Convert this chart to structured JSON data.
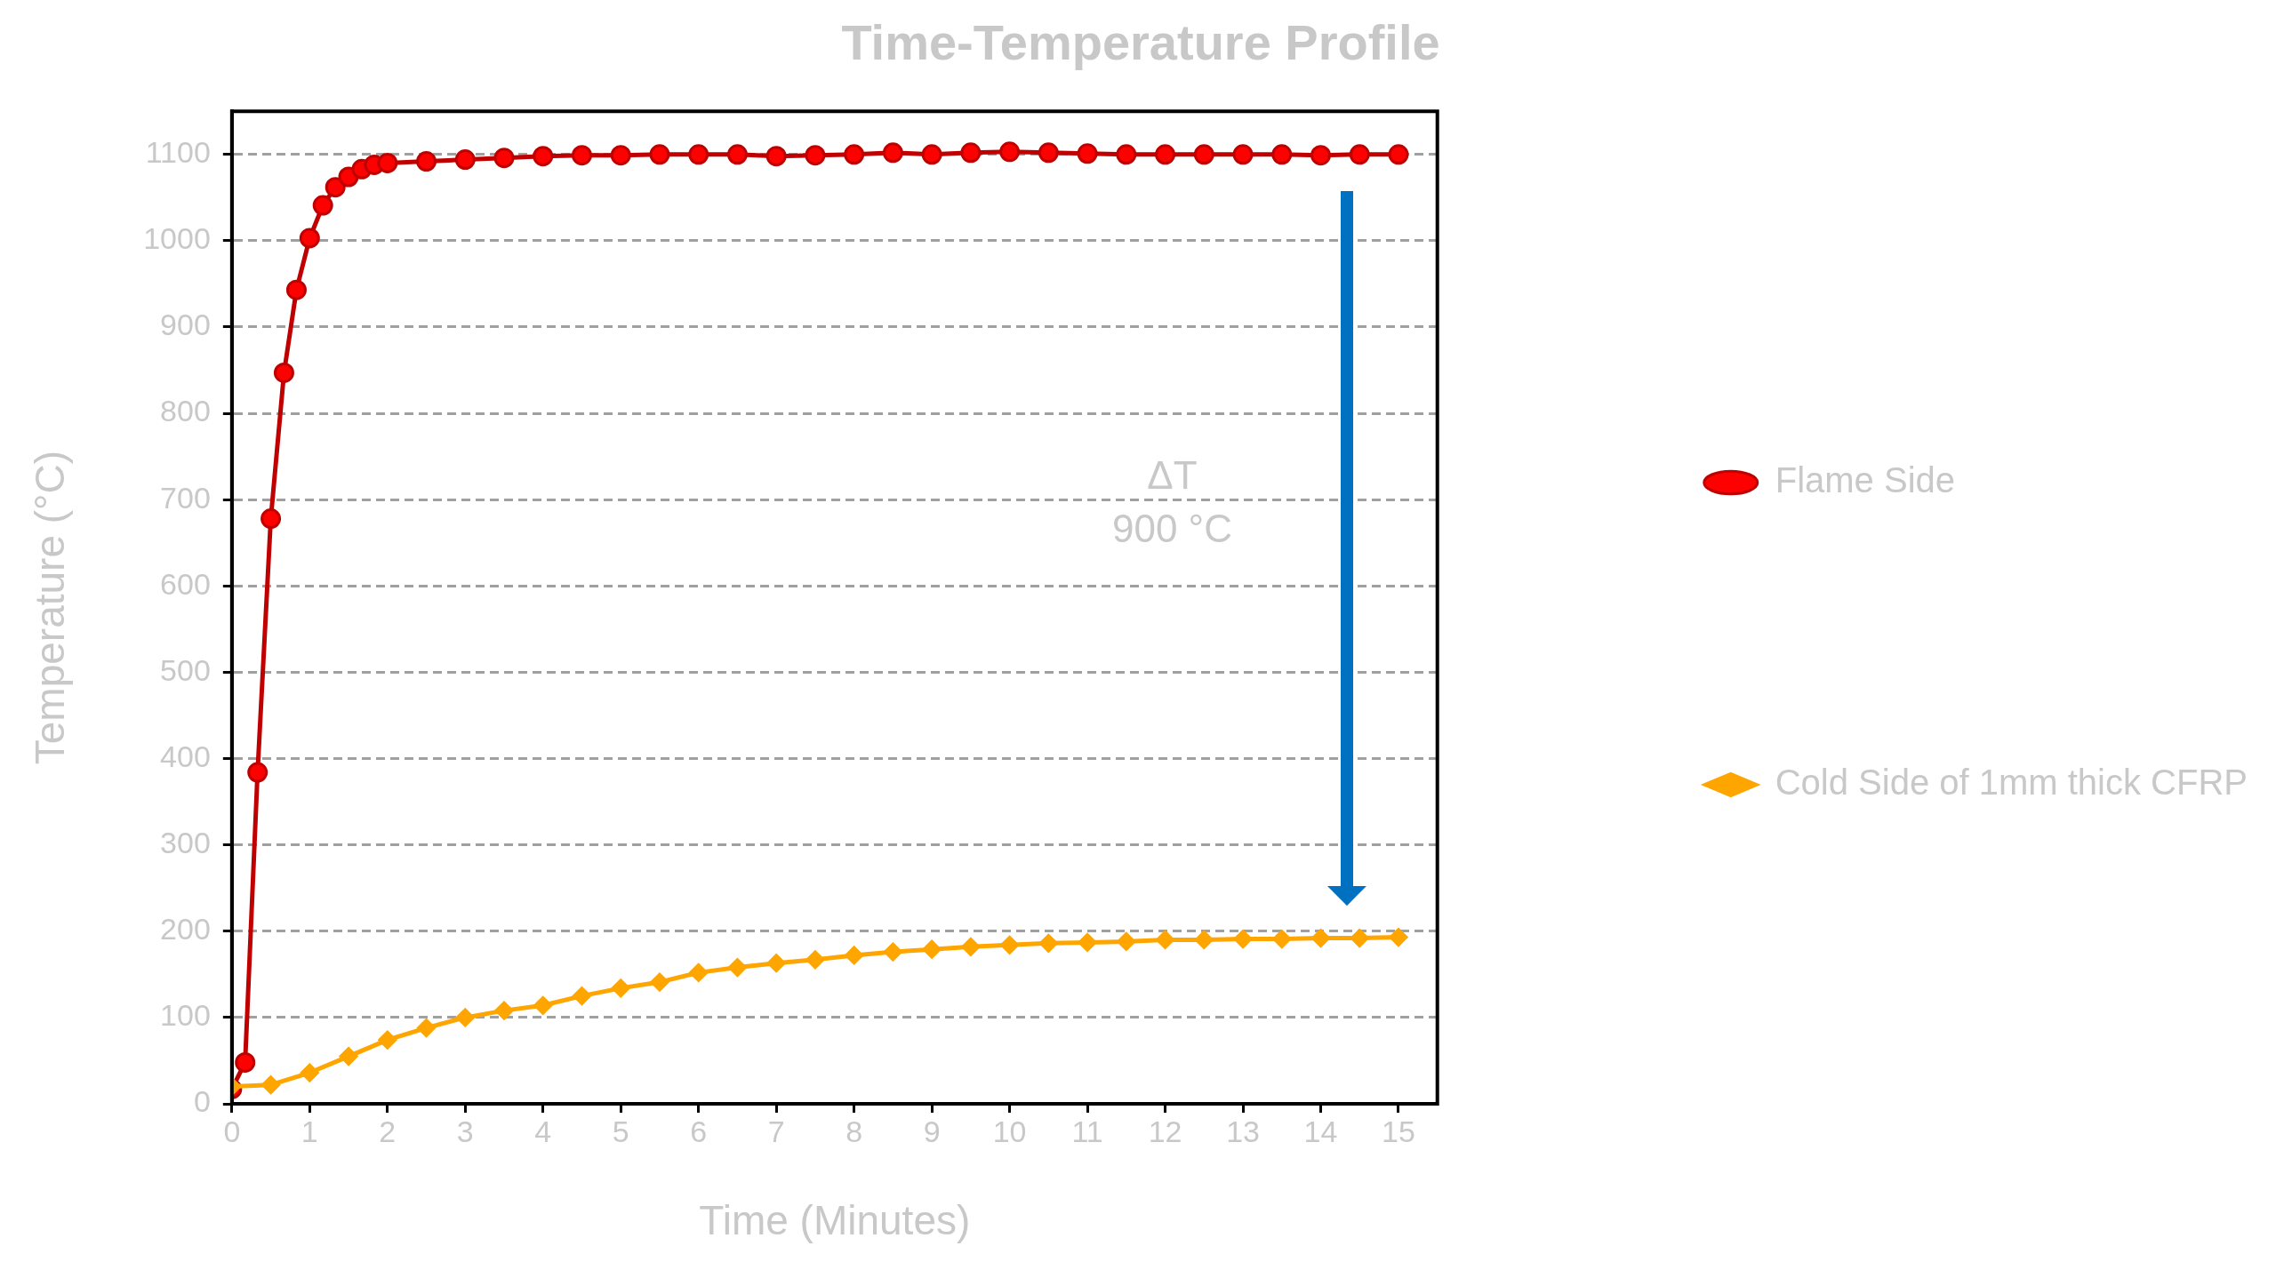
{
  "chart_data": {
    "type": "line",
    "title": "Time-Temperature Profile",
    "xlabel": "Time (Minutes)",
    "ylabel": "Temperature (°C)",
    "annotations": [
      "ΔT",
      "900 °C"
    ],
    "xlim": [
      0,
      15.5
    ],
    "xticks": [
      0,
      1,
      2,
      3,
      4,
      5,
      6,
      7,
      8,
      9,
      10,
      11,
      12,
      13,
      14,
      15
    ],
    "ylim": [
      0,
      1150
    ],
    "yticks": [
      0,
      100,
      200,
      300,
      400,
      500,
      600,
      700,
      800,
      900,
      1000,
      1100
    ],
    "grid": "y",
    "legend": "right",
    "line_style": "solid",
    "series": [
      {
        "name": "Flame Side",
        "color": "#c00000",
        "marker": "circle",
        "x": [
          0,
          0.17,
          0.33,
          0.5,
          0.67,
          0.83,
          1,
          1.17,
          1.33,
          1.5,
          1.67,
          1.83,
          2,
          2.5,
          3,
          3.5,
          4,
          4.5,
          5,
          5.5,
          6,
          6.5,
          7,
          7.5,
          8,
          8.5,
          9,
          9.5,
          10,
          10.5,
          11,
          11.5,
          12,
          12.5,
          13,
          13.5,
          14,
          14.5,
          15
        ],
        "values": [
          17,
          48,
          384,
          678,
          847,
          943,
          1003,
          1041,
          1062,
          1074,
          1083,
          1088,
          1090,
          1092,
          1094,
          1096,
          1098,
          1099,
          1099,
          1100,
          1100,
          1100,
          1098,
          1099,
          1100,
          1102,
          1100,
          1102,
          1103,
          1102,
          1101,
          1100,
          1100,
          1100,
          1100,
          1100,
          1099,
          1100,
          1100
        ]
      },
      {
        "name": "Cold Side of 1mm thick CFRP",
        "color": "#ffa500",
        "marker": "diamond",
        "x": [
          0,
          0.5,
          1,
          1.5,
          2,
          2.5,
          3,
          3.5,
          4,
          4.5,
          5,
          5.5,
          6,
          6.5,
          7,
          7.5,
          8,
          8.5,
          9,
          9.5,
          10,
          10.5,
          11,
          11.5,
          12,
          12.5,
          13,
          13.5,
          14,
          14.5,
          15
        ],
        "values": [
          20,
          22,
          36,
          55,
          74,
          88,
          100,
          108,
          114,
          125,
          134,
          141,
          152,
          158,
          163,
          167,
          172,
          176,
          179,
          182,
          184,
          186,
          187,
          188,
          190,
          190,
          191,
          191,
          192,
          192,
          193
        ]
      }
    ]
  }
}
